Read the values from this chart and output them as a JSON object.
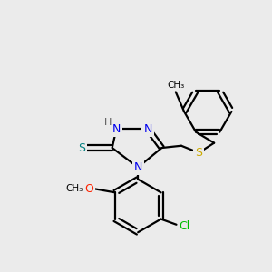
{
  "background_color": "#ebebeb",
  "bond_color": "#000000",
  "bond_width": 1.6,
  "atom_colors": {
    "N": "#0000ee",
    "S_thiol": "#008080",
    "S_bridge": "#ccaa00",
    "O": "#ff2200",
    "Cl": "#00bb00",
    "H": "#555555"
  },
  "figsize": [
    3.0,
    3.0
  ],
  "dpi": 100,
  "xlim": [
    0,
    300
  ],
  "ylim": [
    0,
    300
  ]
}
